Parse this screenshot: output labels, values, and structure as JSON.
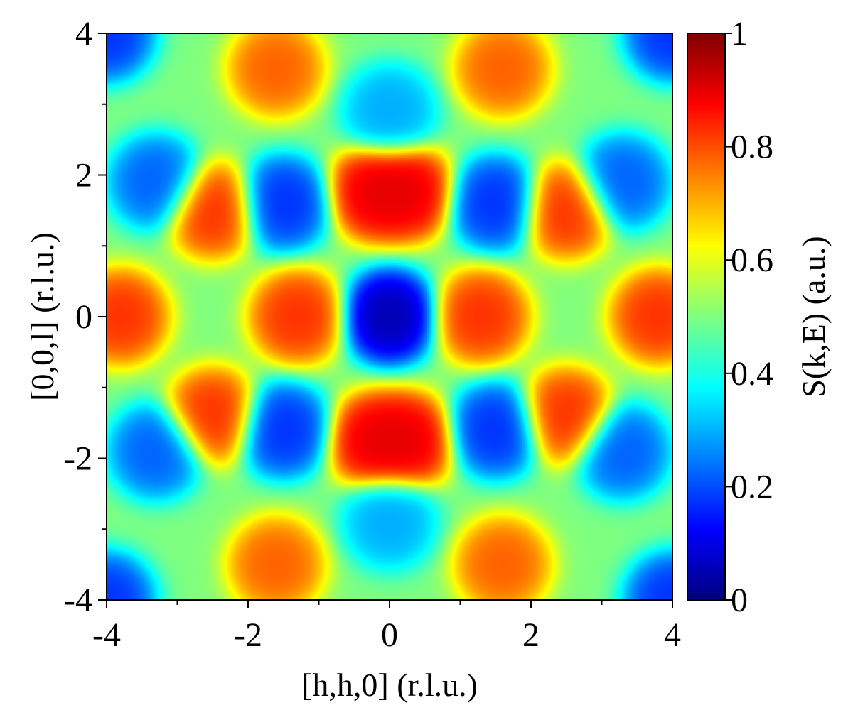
{
  "chart_data": {
    "type": "heatmap",
    "colormap": "jet",
    "x_range": [
      -4,
      4
    ],
    "y_range": [
      -4,
      4
    ],
    "x_ticks": [
      -4,
      -2,
      0,
      2,
      4
    ],
    "y_ticks": [
      -4,
      -2,
      0,
      2,
      4
    ],
    "x_tick_labels": [
      "-4",
      "-2",
      "0",
      "2",
      "4"
    ],
    "y_tick_labels": [
      "-4",
      "-2",
      "0",
      "2",
      "4"
    ],
    "x_minor_ticks": [
      -3,
      -1,
      1,
      3
    ],
    "y_minor_ticks": [
      -3,
      -1,
      1,
      3
    ],
    "xlabel": "[h,h,0] (r.l.u.)",
    "ylabel": "[0,0,l] (r.l.u.)",
    "colorbar": {
      "label": "S(k,E) (a.u.)",
      "range": [
        0,
        1
      ],
      "ticks": [
        0,
        0.2,
        0.4,
        0.6,
        0.8,
        1
      ],
      "tick_labels": [
        "0",
        "0.2",
        "0.4",
        "0.6",
        "0.8",
        "1"
      ]
    },
    "features": [
      {
        "h": 0,
        "l": 0,
        "intensity": 0.02
      },
      {
        "h": 0,
        "l": 2.9,
        "intensity": 0.28
      },
      {
        "h": 0,
        "l": -2.9,
        "intensity": 0.28
      },
      {
        "h": -0.2,
        "l": 1.75,
        "intensity": 0.92
      },
      {
        "h": 0.25,
        "l": 1.75,
        "intensity": 0.92
      },
      {
        "h": -0.2,
        "l": -1.75,
        "intensity": 0.92
      },
      {
        "h": 0.25,
        "l": -1.75,
        "intensity": 0.92
      },
      {
        "h": -1.3,
        "l": 0,
        "intensity": 0.85
      },
      {
        "h": 1.3,
        "l": 0,
        "intensity": 0.85
      },
      {
        "h": -3.8,
        "l": 0,
        "intensity": 0.85
      },
      {
        "h": 3.8,
        "l": 0,
        "intensity": 0.85
      },
      {
        "h": -1.5,
        "l": 1.6,
        "intensity": 0.15
      },
      {
        "h": 1.5,
        "l": 1.6,
        "intensity": 0.15
      },
      {
        "h": -1.5,
        "l": -1.6,
        "intensity": 0.15
      },
      {
        "h": 1.5,
        "l": -1.6,
        "intensity": 0.15
      },
      {
        "h": -2.5,
        "l": 1.5,
        "intensity": 0.85
      },
      {
        "h": 2.5,
        "l": 1.5,
        "intensity": 0.85
      },
      {
        "h": -2.5,
        "l": -1.4,
        "intensity": 0.85
      },
      {
        "h": 2.5,
        "l": -1.4,
        "intensity": 0.85
      },
      {
        "h": -1.6,
        "l": 3.5,
        "intensity": 0.8
      },
      {
        "h": 1.6,
        "l": 3.5,
        "intensity": 0.8
      },
      {
        "h": -1.6,
        "l": -3.5,
        "intensity": 0.8
      },
      {
        "h": 1.6,
        "l": -3.5,
        "intensity": 0.8
      },
      {
        "h": -3.3,
        "l": 1.9,
        "intensity": 0.2
      },
      {
        "h": 3.3,
        "l": 1.9,
        "intensity": 0.2
      },
      {
        "h": -3.3,
        "l": -1.9,
        "intensity": 0.2
      },
      {
        "h": 3.3,
        "l": -1.9,
        "intensity": 0.2
      },
      {
        "h": -4,
        "l": 4,
        "intensity": 0.15
      },
      {
        "h": 4,
        "l": 4,
        "intensity": 0.15
      },
      {
        "h": -4,
        "l": -4,
        "intensity": 0.15
      },
      {
        "h": 4,
        "l": -4,
        "intensity": 0.15
      }
    ]
  }
}
